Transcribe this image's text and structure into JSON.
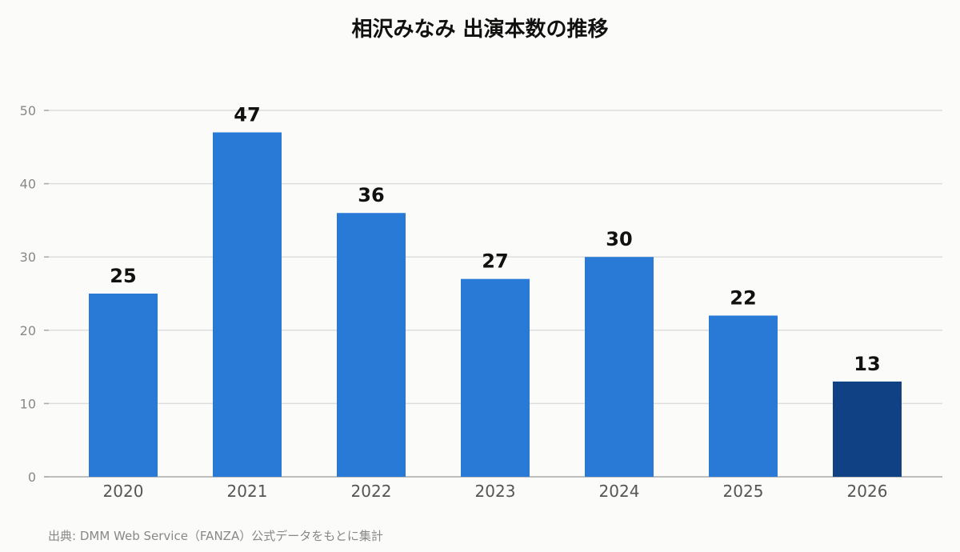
{
  "chart_data": {
    "type": "bar",
    "title": "相沢みなみ 出演本数の推移",
    "categories": [
      "2020",
      "2021",
      "2022",
      "2023",
      "2024",
      "2025",
      "2026"
    ],
    "values": [
      25,
      47,
      36,
      27,
      30,
      22,
      13
    ],
    "xlabel": "",
    "ylabel": "",
    "ylim": [
      0,
      50
    ],
    "yticks": [
      0,
      10,
      20,
      30,
      40,
      50
    ],
    "grid": true,
    "colors": {
      "bar": "#2979d6",
      "highlight": "#0f4184",
      "grid": "#dddddd",
      "axis": "#aaaaaa"
    },
    "highlight_index": 6
  },
  "source_text": "出典: DMM Web Service（FANZA）公式データをもとに集計"
}
